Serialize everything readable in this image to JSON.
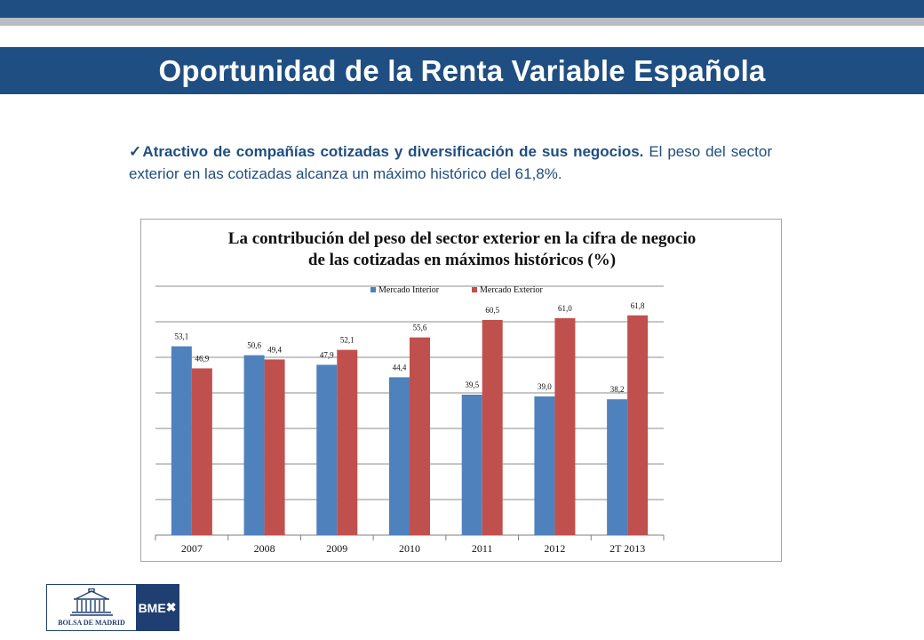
{
  "slide": {
    "title": "Oportunidad de la Renta Variable Española",
    "bullet_check": "✓",
    "bullet_bold": "Atractivo de compañías cotizadas y diversificación de sus negocios.",
    "bullet_text": "El peso del sector exterior en las cotizadas alcanza un máximo histórico del 61,8%."
  },
  "logos": {
    "madrid_label": "BOLSA DE MADRID",
    "bme_label": "BME"
  },
  "colors": {
    "brand_blue": "#1f4e82",
    "series_interior": "#4f81bd",
    "series_exterior": "#c0504d"
  },
  "chart_data": {
    "type": "bar",
    "title_line1": "La contribución del peso del sector exterior en la cifra de negocio",
    "title_line2": "de las cotizadas en máximos históricos (%)",
    "categories": [
      "2007",
      "2008",
      "2009",
      "2010",
      "2011",
      "2012",
      "2T 2013"
    ],
    "series": [
      {
        "name": "Mercado Interior",
        "values": [
          53.1,
          50.6,
          47.9,
          44.4,
          39.5,
          39.0,
          38.2
        ],
        "labels": [
          "53,1",
          "50,6",
          "47,9",
          "44,4",
          "39,5",
          "39,0",
          "38,2"
        ],
        "color": "#4f81bd"
      },
      {
        "name": "Mercado Exterior",
        "values": [
          46.9,
          49.4,
          52.1,
          55.6,
          60.5,
          61.0,
          61.8
        ],
        "labels": [
          "46,9",
          "49,4",
          "52,1",
          "55,6",
          "60,5",
          "61,0",
          "61,8"
        ],
        "color": "#c0504d"
      }
    ],
    "ylim": [
      0,
      70
    ],
    "gridlines": true,
    "legend_position": "top"
  }
}
